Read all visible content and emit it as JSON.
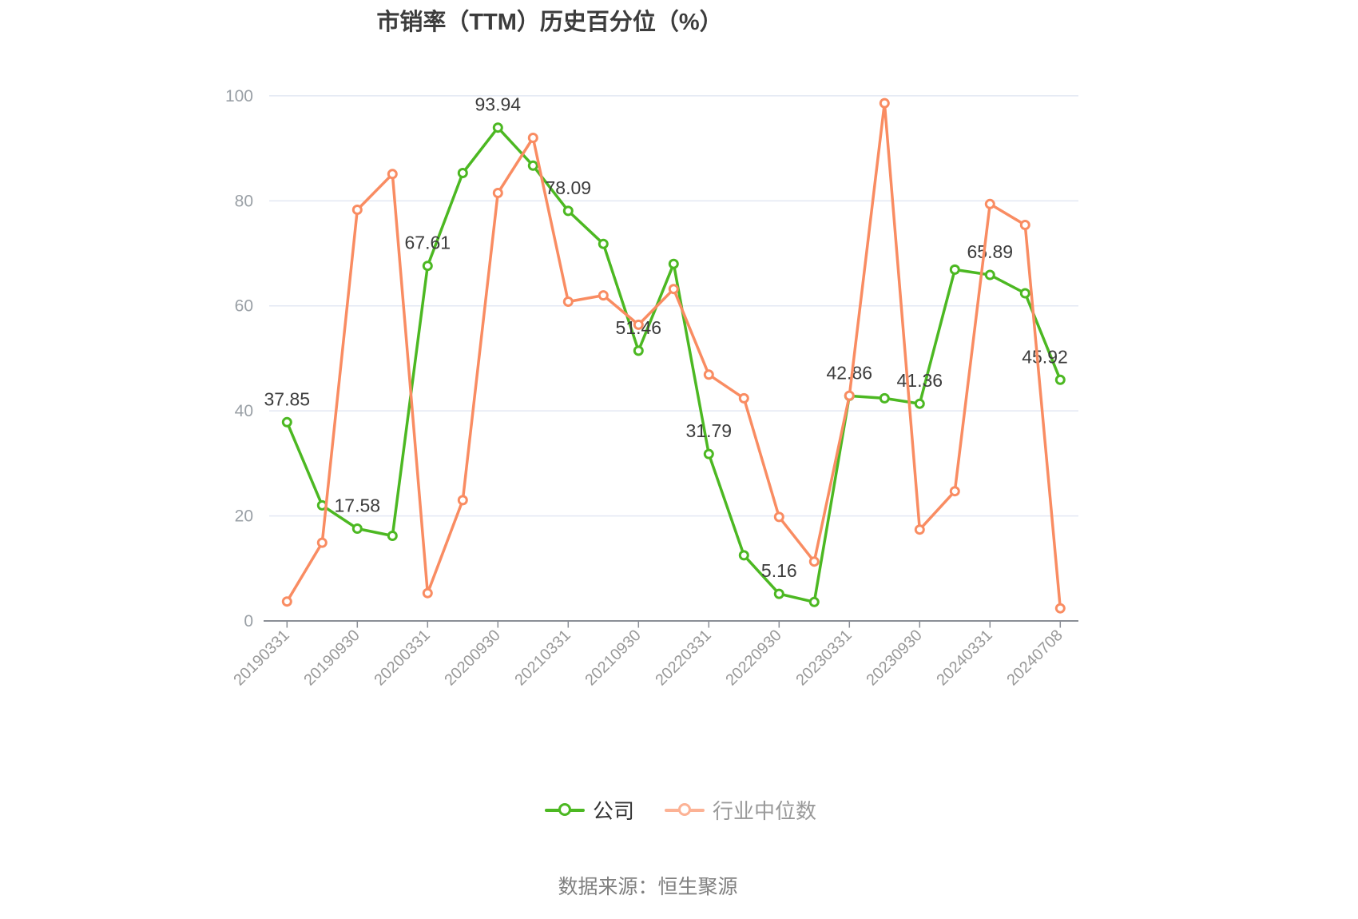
{
  "title": "市销率（TTM）历史百分位（%）",
  "source": "数据来源：恒生聚源",
  "legend": [
    {
      "label": "公司",
      "color": "#4CB822",
      "text_color": "#333333"
    },
    {
      "label": "行业中位数",
      "color": "#FCB295",
      "text_color": "#999999"
    }
  ],
  "colors": {
    "company_line": "#4CB822",
    "industry_line": "#F98C62",
    "grid": "#E3E8F3",
    "axis": "#8A8E96",
    "tick": "#8A8E96",
    "axis_label": "#9AA0A6",
    "value_label": "#3C3C3C",
    "title": "#3C3C3C",
    "source": "#808080"
  },
  "chart_data": {
    "type": "line",
    "title": "市销率（TTM）历史百分位（%）",
    "x_axis_labels": [
      "20190331",
      "20190930",
      "20200331",
      "20200930",
      "20210331",
      "20210930",
      "20220331",
      "20220930",
      "20230331",
      "20230930",
      "20240331",
      "20240708"
    ],
    "x_label_every": 2,
    "y_ticks": [
      0,
      20,
      40,
      60,
      80,
      100
    ],
    "ylim": [
      0,
      100
    ],
    "grid": true,
    "legend_position": "bottom",
    "series": [
      {
        "name": "公司",
        "color": "#4CB822",
        "values": [
          37.85,
          22.0,
          17.58,
          16.2,
          67.61,
          85.3,
          93.94,
          86.7,
          78.09,
          71.8,
          51.46,
          68.0,
          31.79,
          12.5,
          5.16,
          3.6,
          42.86,
          42.4,
          41.36,
          66.9,
          65.89,
          62.4,
          45.92
        ],
        "point_labels": {
          "0": "37.85",
          "2": "17.58",
          "4": "67.61",
          "6": "93.94",
          "8": "78.09",
          "10": "51.46",
          "12": "31.79",
          "14": "5.16",
          "16": "42.86",
          "18": "41.36",
          "20": "65.89",
          "22": "45.92"
        }
      },
      {
        "name": "行业中位数",
        "color": "#F98C62",
        "values": [
          3.7,
          14.9,
          78.3,
          85.1,
          5.3,
          23.0,
          81.5,
          92.0,
          60.8,
          62.0,
          56.4,
          63.2,
          46.9,
          42.4,
          19.8,
          11.3,
          42.9,
          98.6,
          17.4,
          24.7,
          79.4,
          75.4,
          2.4
        ],
        "point_labels": {}
      }
    ]
  }
}
